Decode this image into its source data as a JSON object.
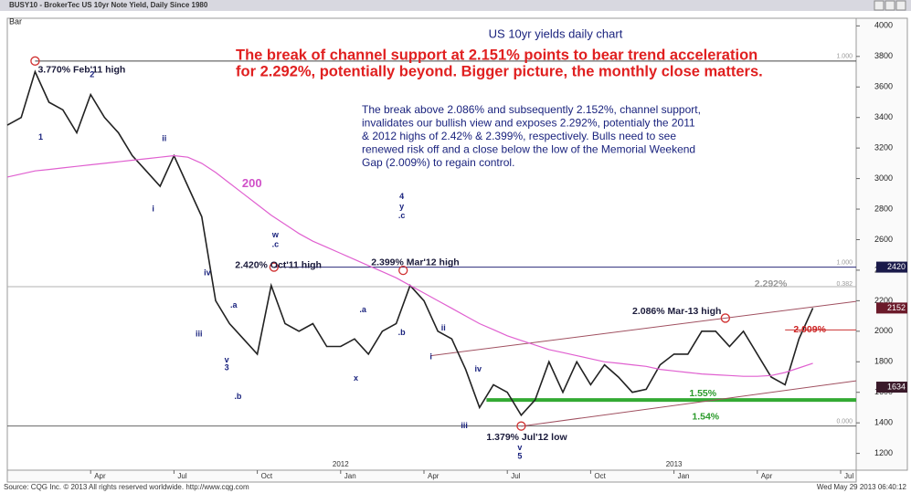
{
  "window_title": "BUSY10 - BrokerTec US 10yr Note Yield, Daily Since 1980",
  "chart_style": "Bar",
  "footer": {
    "source": "Source: CQG Inc. © 2013 All rights reserved worldwide. http://www.cqg.com",
    "timestamp": "Wed May 29 2013 06:40:12"
  },
  "chart_data": {
    "type": "line",
    "title": "US 10yr yields daily chart",
    "headline": [
      "The break of channel support at 2.151% points to bear trend acceleration",
      "for 2.292%, potentially beyond. Bigger picture, the monthly close matters."
    ],
    "commentary": [
      "The break above 2.086% and subsequently 2.152%, channel support,",
      "invalidates our bullish view and exposes 2.292%, potentialy the 2011",
      "& 2012 highs of 2.42% & 2.399%, respectively. Bulls need to see",
      "renewed risk off and a close below the low of the Memorial Weekend",
      "Gap (2.009%) to regain control."
    ],
    "categories": [
      null,
      null,
      null,
      null,
      null,
      null,
      "Apr",
      null,
      null,
      null,
      null,
      null,
      "Jul",
      null,
      null,
      null,
      null,
      null,
      "Oct",
      null,
      null,
      null,
      null,
      null,
      "Jan",
      null,
      null,
      null,
      null,
      null,
      "Apr",
      null,
      null,
      null,
      null,
      null,
      "Jul",
      null,
      null,
      null,
      null,
      null,
      "Oct",
      null,
      null,
      null,
      null,
      null,
      "Jan",
      null,
      null,
      null,
      null,
      null,
      "Apr",
      null,
      null,
      null,
      null,
      null,
      "Jul",
      null
    ],
    "years": [
      null,
      null,
      null,
      null,
      null,
      null,
      null,
      null,
      null,
      null,
      null,
      null,
      null,
      null,
      null,
      null,
      null,
      null,
      null,
      null,
      null,
      null,
      null,
      null,
      "2012",
      null,
      null,
      null,
      null,
      null,
      null,
      null,
      null,
      null,
      null,
      null,
      null,
      null,
      null,
      null,
      null,
      null,
      null,
      null,
      null,
      null,
      null,
      null,
      "2013",
      null,
      null,
      null,
      null,
      null,
      null,
      null,
      null,
      null,
      null,
      null,
      null,
      null
    ],
    "series": [
      {
        "name": "BUSY10",
        "color": "#222222",
        "values": [
          3350,
          3400,
          3700,
          3500,
          3450,
          3300,
          3550,
          3400,
          3300,
          3150,
          3050,
          2950,
          3150,
          2950,
          2750,
          2200,
          2050,
          1950,
          1850,
          2300,
          2050,
          2000,
          2050,
          1900,
          1900,
          1950,
          1850,
          2000,
          2050,
          2300,
          2200,
          2000,
          1950,
          1750,
          1500,
          1650,
          1600,
          1450,
          1550,
          1800,
          1600,
          1800,
          1650,
          1780,
          1700,
          1600,
          1620,
          1780,
          1850,
          1850,
          2000,
          2000,
          1900,
          2000,
          1850,
          1700,
          1650,
          1950,
          2152,
          null,
          null,
          null
        ]
      },
      {
        "name": "200",
        "color": "#e060d0",
        "values": [
          3010,
          3030,
          3050,
          3060,
          3070,
          3080,
          3090,
          3100,
          3110,
          3120,
          3130,
          3140,
          3150,
          3140,
          3100,
          3040,
          2970,
          2900,
          2830,
          2760,
          2700,
          2640,
          2590,
          2550,
          2510,
          2470,
          2430,
          2390,
          2350,
          2300,
          2250,
          2200,
          2150,
          2100,
          2050,
          2010,
          1970,
          1940,
          1910,
          1880,
          1860,
          1840,
          1820,
          1800,
          1790,
          1780,
          1770,
          1750,
          1740,
          1730,
          1720,
          1715,
          1710,
          1705,
          1705,
          1710,
          1730,
          1760,
          1790,
          null,
          null,
          null
        ]
      }
    ],
    "ylim": [
      1090,
      4050
    ],
    "yticks": [
      1200,
      1400,
      1600,
      1800,
      2000,
      2200,
      2400,
      2600,
      2800,
      3000,
      3200,
      3400,
      3600,
      3800,
      4000
    ],
    "levels": [
      {
        "value": 3770,
        "from": 2,
        "color": "#444444"
      },
      {
        "value": 2420,
        "from": 19.2,
        "color": "#2a2a7a"
      },
      {
        "value": 2292,
        "from": 0,
        "color": "#b0b0b0"
      },
      {
        "value": 1379,
        "from": 0,
        "color": "#666666"
      },
      {
        "value": 1550,
        "from": 34.5,
        "color": "#33aa33"
      },
      {
        "value": 2009,
        "from": 56,
        "color": "#cc3333"
      }
    ],
    "fib_labels": [
      {
        "label": "1.000",
        "value": 3770
      },
      {
        "label": "1.000",
        "value": 2420
      },
      {
        "label": "0.382",
        "value": 2280
      },
      {
        "label": "0.000",
        "value": 1379
      }
    ],
    "trendlines": [
      {
        "x": [
          30.5,
          61.5
        ],
        "y": [
          1840,
          2200
        ],
        "color": "#a05060"
      },
      {
        "x": [
          37,
          61.5
        ],
        "y": [
          1378,
          1680
        ],
        "color": "#a05060"
      }
    ],
    "markers": [
      {
        "x": 2,
        "y": 3770
      },
      {
        "x": 19.2,
        "y": 2420
      },
      {
        "x": 28.5,
        "y": 2399
      },
      {
        "x": 37,
        "y": 1379
      },
      {
        "x": 51.7,
        "y": 2086
      }
    ],
    "price_tags": [
      {
        "label": "2420",
        "value": 2420,
        "color": "#1a1a4a"
      },
      {
        "label": "2152",
        "value": 2152,
        "color": "#6b1a2a"
      },
      {
        "label": "1634",
        "value": 1634,
        "color": "#3a1a2a"
      }
    ],
    "annotations": [
      {
        "text": "3.770% Feb'11 high",
        "x": 2.2,
        "y": 3710,
        "color": "#1a1a3a"
      },
      {
        "text": "2.420% Oct'11 high",
        "x": 16.4,
        "y": 2430,
        "color": "#1a1a3a"
      },
      {
        "text": "2.399% Mar'12 high",
        "x": 26.2,
        "y": 2450,
        "color": "#1a1a3a"
      },
      {
        "text": "1.379% Jul'12 low",
        "x": 34.5,
        "y": 1305,
        "color": "#1a1a3a"
      },
      {
        "text": "2.086% Mar-13 high",
        "x": 45,
        "y": 2130,
        "color": "#1a1a3a"
      },
      {
        "text": "2.292%",
        "x": 53.8,
        "y": 2310,
        "color": "#999999"
      },
      {
        "text": "2.009%",
        "x": 56.6,
        "y": 2010,
        "color": "#cc2222"
      },
      {
        "text": "1.55%",
        "x": 49.1,
        "y": 1590,
        "color": "#2a9a2a"
      },
      {
        "text": "1.54%",
        "x": 49.3,
        "y": 1440,
        "color": "#2a9a2a"
      },
      {
        "text": "200",
        "x": 16.9,
        "y": 2965,
        "color": "#d050c8"
      }
    ],
    "wave_labels": [
      {
        "text": "1",
        "x": 2.4,
        "y": 3270
      },
      {
        "text": "2",
        "x": 6.1,
        "y": 3680
      },
      {
        "text": "ii",
        "x": 11.3,
        "y": 3260
      },
      {
        "text": "i",
        "x": 10.5,
        "y": 2800
      },
      {
        "text": "iv",
        "x": 14.4,
        "y": 2380
      },
      {
        "text": "iii",
        "x": 13.8,
        "y": 1980
      },
      {
        "text": ".a",
        "x": 16.3,
        "y": 2170
      },
      {
        "text": "v",
        "x": 15.8,
        "y": 1810
      },
      {
        "text": "3",
        "x": 15.8,
        "y": 1760
      },
      {
        "text": ".b",
        "x": 16.6,
        "y": 1570
      },
      {
        "text": "w",
        "x": 19.3,
        "y": 2630
      },
      {
        "text": ".c",
        "x": 19.3,
        "y": 2565
      },
      {
        "text": ".a",
        "x": 25.6,
        "y": 2140
      },
      {
        "text": "x",
        "x": 25.1,
        "y": 1690
      },
      {
        "text": "4",
        "x": 28.4,
        "y": 2880
      },
      {
        "text": "y",
        "x": 28.4,
        "y": 2815
      },
      {
        "text": ".c",
        "x": 28.4,
        "y": 2755
      },
      {
        "text": ".b",
        "x": 28.4,
        "y": 1990
      },
      {
        "text": "ii",
        "x": 31.4,
        "y": 2020
      },
      {
        "text": "i",
        "x": 30.5,
        "y": 1830
      },
      {
        "text": "iv",
        "x": 33.9,
        "y": 1750
      },
      {
        "text": "iii",
        "x": 32.9,
        "y": 1380
      },
      {
        "text": "v",
        "x": 36.9,
        "y": 1235
      },
      {
        "text": "5",
        "x": 36.9,
        "y": 1180
      }
    ]
  }
}
